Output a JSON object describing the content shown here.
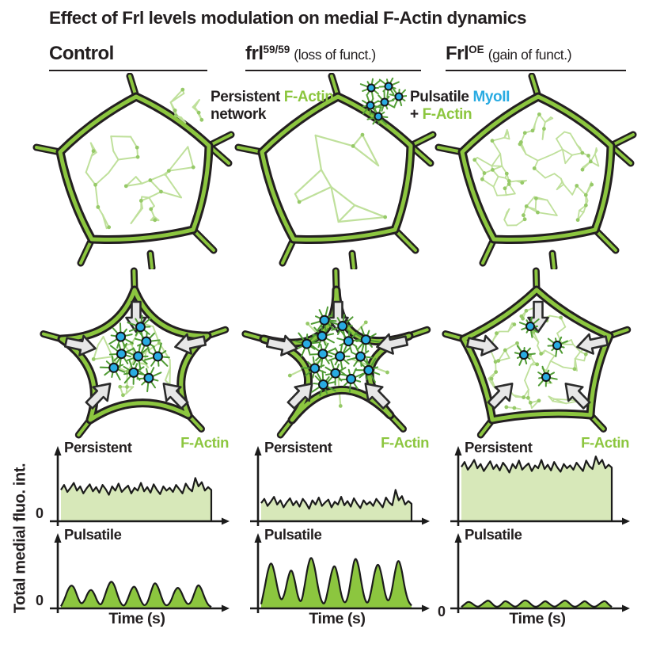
{
  "title": "Effect of Frl levels modulation on medial F-Actin dynamics",
  "colors": {
    "ink": "#231f20",
    "membrane_green": "#8CC63F",
    "mesh_green": "#BFE09B",
    "mesh_node_green": "#96C968",
    "burst_green": "#4F9B33",
    "myoii_blue": "#29ABE2",
    "persistent_fill": "#D7E8B9",
    "pulsatile_fill": "#8CC63F",
    "arrow_fill": "#E7E7E7",
    "arrow_stroke": "#2b2b2b"
  },
  "columns": [
    {
      "header": {
        "main": "Control",
        "sup": "",
        "note": ""
      },
      "row1": {
        "network_density": "medium"
      },
      "row2": {
        "contraction": "medium",
        "myoii_dots": 9,
        "arrow_count": 5
      }
    },
    {
      "header": {
        "main": "frl",
        "sup": "59/59",
        "note": "(loss of funct.)"
      },
      "row1": {
        "network_density": "sparse"
      },
      "row2": {
        "contraction": "strong",
        "myoii_dots": 14,
        "arrow_count": 5
      }
    },
    {
      "header": {
        "main": "Frl",
        "sup": "OE",
        "note": "(gain of funct.)"
      },
      "row1": {
        "network_density": "dense"
      },
      "row2": {
        "contraction": "weak",
        "myoii_dots": 4,
        "arrow_count": 5
      }
    }
  ],
  "legend": {
    "persistent": {
      "prefix": "Persistent",
      "highlight": "F-Actin",
      "suffix": "network"
    },
    "pulsatile": {
      "prefix": "Pulsatile",
      "highlight": "MyoII",
      "plus": "+",
      "highlight2": "F-Actin"
    }
  },
  "plots": {
    "y_axis_label": "Total medial fluo. int.",
    "x_axis_label": "Time (s)"
  },
  "chart_data": [
    {
      "id": "control-persistent",
      "column": "Control",
      "type": "area",
      "subtype": "noisy",
      "label": "Persistent",
      "series": "F-Actin",
      "xlabel": "Time (s)",
      "ylabel": "Total medial fluo. int.",
      "ylim": [
        0,
        1
      ],
      "zero_label": "0",
      "fill": "#D7E8B9",
      "values": [
        0.45,
        0.52,
        0.42,
        0.48,
        0.55,
        0.44,
        0.5,
        0.4,
        0.47,
        0.53,
        0.43,
        0.49,
        0.41,
        0.52,
        0.46,
        0.38,
        0.5,
        0.44,
        0.54,
        0.42,
        0.47,
        0.51,
        0.4,
        0.48,
        0.44,
        0.55,
        0.43,
        0.49,
        0.41,
        0.53,
        0.45,
        0.39,
        0.5,
        0.44,
        0.48,
        0.42,
        0.52,
        0.46,
        0.4,
        0.54,
        0.47,
        0.43,
        0.62,
        0.5,
        0.56,
        0.44,
        0.49,
        0.45
      ]
    },
    {
      "id": "control-pulsatile",
      "column": "Control",
      "type": "area",
      "subtype": "pulses",
      "label": "Pulsatile",
      "series": "",
      "xlabel": "Time (s)",
      "ylabel": "Total medial fluo. int.",
      "ylim": [
        0,
        1
      ],
      "zero_label": "0",
      "fill": "#8CC63F",
      "values": [
        0.03,
        0.12,
        0.26,
        0.34,
        0.3,
        0.16,
        0.06,
        0.1,
        0.22,
        0.28,
        0.21,
        0.09,
        0.04,
        0.16,
        0.31,
        0.4,
        0.34,
        0.18,
        0.06,
        0.03,
        0.13,
        0.27,
        0.33,
        0.23,
        0.1,
        0.03,
        0.09,
        0.25,
        0.38,
        0.32,
        0.17,
        0.05,
        0.04,
        0.11,
        0.25,
        0.31,
        0.24,
        0.12,
        0.05,
        0.09,
        0.23,
        0.35,
        0.29,
        0.15,
        0.05,
        0.02
      ]
    },
    {
      "id": "frl-persistent",
      "column": "frl59/59",
      "type": "area",
      "subtype": "noisy",
      "label": "Persistent",
      "series": "F-Actin",
      "xlabel": "Time (s)",
      "ylabel": "Total medial fluo. int.",
      "ylim": [
        0,
        1
      ],
      "zero_label": "",
      "fill": "#D7E8B9",
      "values": [
        0.26,
        0.32,
        0.22,
        0.28,
        0.35,
        0.24,
        0.3,
        0.2,
        0.27,
        0.33,
        0.23,
        0.29,
        0.21,
        0.32,
        0.26,
        0.18,
        0.3,
        0.24,
        0.34,
        0.22,
        0.27,
        0.31,
        0.2,
        0.28,
        0.24,
        0.35,
        0.23,
        0.29,
        0.21,
        0.33,
        0.25,
        0.19,
        0.3,
        0.24,
        0.28,
        0.22,
        0.32,
        0.26,
        0.2,
        0.34,
        0.27,
        0.23,
        0.45,
        0.3,
        0.36,
        0.24,
        0.29,
        0.25
      ]
    },
    {
      "id": "frl-pulsatile",
      "column": "frl59/59",
      "type": "area",
      "subtype": "pulses",
      "label": "Pulsatile",
      "series": "",
      "xlabel": "Time (s)",
      "ylabel": "Total medial fluo. int.",
      "ylim": [
        0,
        1
      ],
      "zero_label": "",
      "fill": "#8CC63F",
      "values": [
        0.06,
        0.28,
        0.55,
        0.68,
        0.52,
        0.26,
        0.1,
        0.2,
        0.44,
        0.58,
        0.42,
        0.16,
        0.07,
        0.32,
        0.62,
        0.76,
        0.6,
        0.3,
        0.1,
        0.05,
        0.26,
        0.52,
        0.64,
        0.46,
        0.18,
        0.06,
        0.16,
        0.46,
        0.74,
        0.66,
        0.36,
        0.12,
        0.06,
        0.26,
        0.54,
        0.66,
        0.5,
        0.22,
        0.08,
        0.22,
        0.52,
        0.72,
        0.58,
        0.28,
        0.1,
        0.04
      ]
    },
    {
      "id": "frloe-persistent",
      "column": "FrlOE",
      "type": "area",
      "subtype": "noisy",
      "label": "Persistent",
      "series": "F-Actin",
      "xlabel": "Time (s)",
      "ylabel": "Total medial fluo. int.",
      "ylim": [
        0,
        1
      ],
      "zero_label": "",
      "fill": "#D7E8B9",
      "values": [
        0.78,
        0.85,
        0.74,
        0.8,
        0.88,
        0.76,
        0.82,
        0.72,
        0.79,
        0.86,
        0.75,
        0.81,
        0.73,
        0.84,
        0.78,
        0.7,
        0.82,
        0.76,
        0.87,
        0.74,
        0.79,
        0.83,
        0.72,
        0.8,
        0.76,
        0.88,
        0.75,
        0.81,
        0.73,
        0.85,
        0.77,
        0.71,
        0.82,
        0.76,
        0.8,
        0.74,
        0.84,
        0.78,
        0.72,
        0.87,
        0.79,
        0.75,
        0.93,
        0.82,
        0.88,
        0.76,
        0.81,
        0.77
      ]
    },
    {
      "id": "frloe-pulsatile",
      "column": "FrlOE",
      "type": "area",
      "subtype": "pulses",
      "label": "Pulsatile",
      "series": "",
      "xlabel": "Time (s)",
      "ylabel": "Total medial fluo. int.",
      "ylim": [
        0,
        1
      ],
      "zero_label": "0",
      "fill": "#8CC63F",
      "values": [
        0.02,
        0.06,
        0.1,
        0.08,
        0.04,
        0.02,
        0.05,
        0.09,
        0.12,
        0.08,
        0.03,
        0.02,
        0.06,
        0.11,
        0.09,
        0.05,
        0.02,
        0.04,
        0.09,
        0.12,
        0.1,
        0.05,
        0.02,
        0.03,
        0.07,
        0.11,
        0.08,
        0.04,
        0.02,
        0.05,
        0.09,
        0.12,
        0.09,
        0.04,
        0.02,
        0.04,
        0.08,
        0.11,
        0.07,
        0.03,
        0.02,
        0.05,
        0.09,
        0.11,
        0.06,
        0.02
      ]
    }
  ]
}
